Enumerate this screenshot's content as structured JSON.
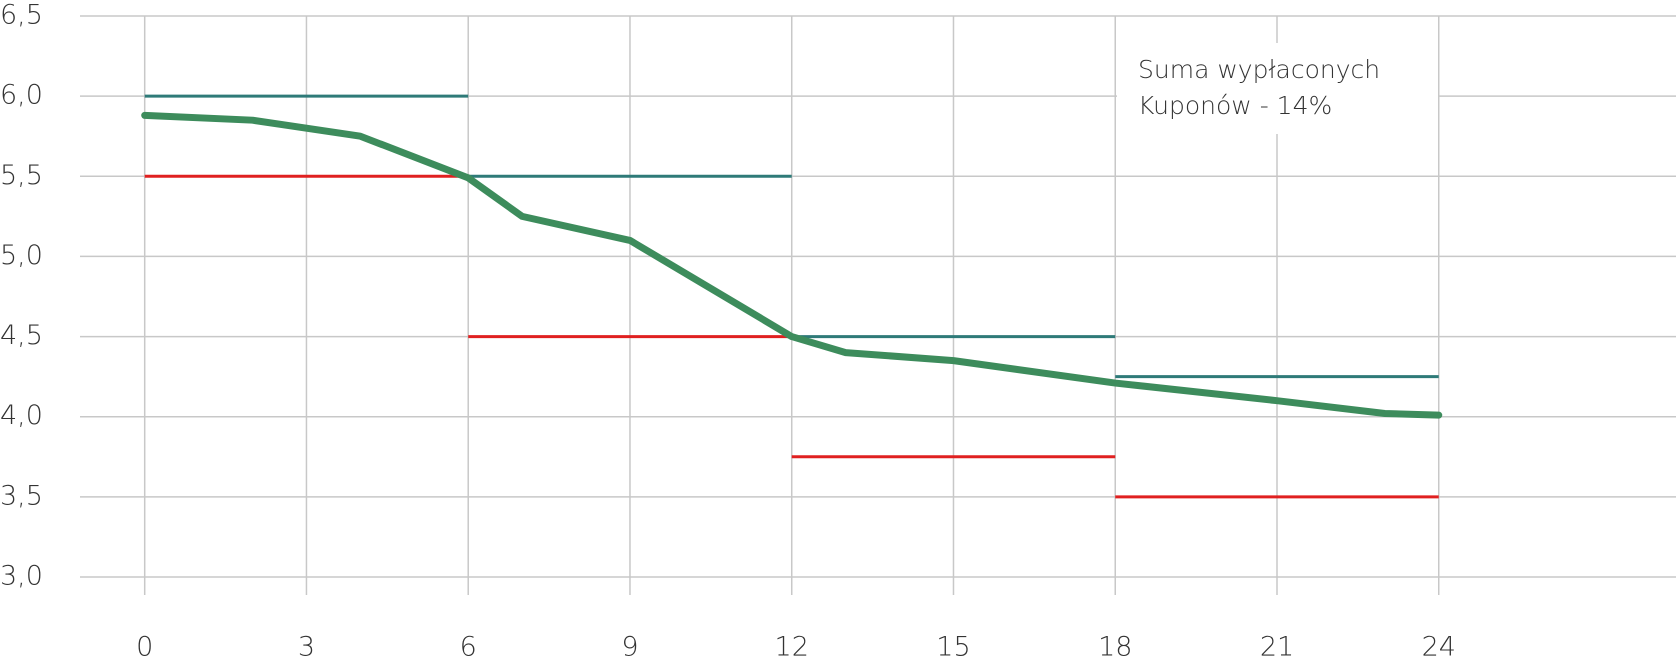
{
  "chart_data": {
    "type": "line",
    "xlim": [
      -1.2,
      28.4
    ],
    "xticks": [
      0,
      3,
      6,
      9,
      12,
      15,
      18,
      21,
      24
    ],
    "ylim": [
      3.0,
      6.5
    ],
    "yticks": [
      {
        "value": 3.0,
        "label": "3,0"
      },
      {
        "value": 3.5,
        "label": "3,5"
      },
      {
        "value": 4.0,
        "label": "4,0"
      },
      {
        "value": 4.5,
        "label": "4,5"
      },
      {
        "value": 5.0,
        "label": "5,0"
      },
      {
        "value": 5.5,
        "label": "5,5"
      },
      {
        "value": 6.0,
        "label": "6,0"
      },
      {
        "value": 6.5,
        "label": "6,5"
      }
    ],
    "grid": true,
    "series": [
      {
        "color": "#3d8c5c",
        "x": [
          0,
          2,
          4,
          6,
          7,
          9,
          12,
          13,
          15,
          18,
          21,
          23,
          24
        ],
        "values": [
          5.88,
          5.85,
          5.75,
          5.49,
          5.25,
          5.1,
          4.5,
          4.4,
          4.35,
          4.21,
          4.1,
          4.02,
          4.01
        ]
      }
    ],
    "steps": [
      {
        "color": "#2e7a78",
        "segments": [
          {
            "x": [
              0,
              6
            ],
            "value": 6.0
          },
          {
            "x": [
              6,
              12
            ],
            "value": 5.5
          },
          {
            "x": [
              12,
              18
            ],
            "value": 4.5
          },
          {
            "x": [
              18,
              24
            ],
            "value": 4.25
          }
        ]
      },
      {
        "color": "#e02020",
        "segments": [
          {
            "x": [
              0,
              6
            ],
            "value": 5.5
          },
          {
            "x": [
              6,
              12
            ],
            "value": 4.5
          },
          {
            "x": [
              12,
              18
            ],
            "value": 3.75
          },
          {
            "x": [
              18,
              24
            ],
            "value": 3.5
          }
        ]
      }
    ],
    "annotation": [
      "Suma wypłaconych",
      "Kuponów - 14%"
    ]
  }
}
